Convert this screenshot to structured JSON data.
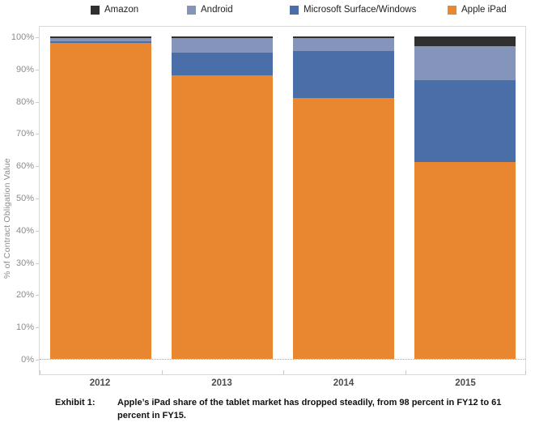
{
  "legend": {
    "items": [
      {
        "label": "Amazon",
        "color": "#303030"
      },
      {
        "label": "Android",
        "color": "#8494ba"
      },
      {
        "label": "Microsoft Surface/Windows",
        "color": "#4a6fa8"
      },
      {
        "label": "Apple iPad",
        "color": "#e8872f"
      }
    ]
  },
  "chart_data": {
    "type": "bar",
    "stacked": true,
    "categories": [
      "2012",
      "2013",
      "2014",
      "2015"
    ],
    "series": [
      {
        "name": "Apple iPad",
        "color": "#e8872f",
        "values": [
          98,
          88,
          81,
          61
        ]
      },
      {
        "name": "Microsoft Surface/Windows",
        "color": "#4a6fa8",
        "values": [
          0.5,
          7,
          14.5,
          25.5
        ]
      },
      {
        "name": "Android",
        "color": "#8494ba",
        "values": [
          1,
          4.5,
          4,
          10.5
        ]
      },
      {
        "name": "Amazon",
        "color": "#303030",
        "values": [
          0.5,
          0.5,
          0.5,
          3
        ]
      }
    ],
    "title": "",
    "xlabel": "",
    "ylabel": "% of Contract Obligation Value",
    "ylim": [
      0,
      100
    ],
    "yticks": [
      "0%",
      "10%",
      "20%",
      "30%",
      "40%",
      "50%",
      "60%",
      "70%",
      "80%",
      "90%",
      "100%"
    ],
    "grid": "zero-line-dotted-only",
    "legend_position": "top"
  },
  "caption": {
    "label": "Exhibit 1:",
    "text": "Apple’s iPad share of the tablet market has dropped steadily, from 98 percent in FY12 to 61 percent in FY15."
  }
}
